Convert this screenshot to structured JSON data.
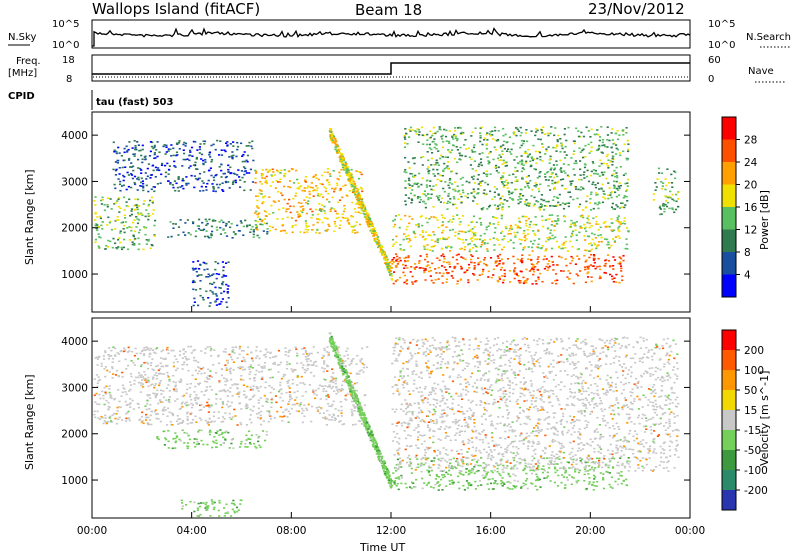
{
  "header": {
    "station": "Wallops Island (fitACF)",
    "beam": "Beam 18",
    "date": "23/Nov/2012"
  },
  "strip_panels": {
    "noise": {
      "left_label": "N.Sky",
      "right_label": "N.Search",
      "left_ticks": [
        "10^5",
        "10^0"
      ],
      "right_ticks": [
        "10^5",
        "10^0"
      ],
      "line_color": "#000000"
    },
    "freq": {
      "left_label": "Freq.",
      "left_units": "[MHz]",
      "right_label": "Nave",
      "left_ticks": [
        "18",
        "8"
      ],
      "right_ticks": [
        "60",
        "0"
      ],
      "step_hour": 12.0
    },
    "cpid": {
      "label": "CPID",
      "text": "tau (fast) 503"
    }
  },
  "chart_data": [
    {
      "type": "heatmap",
      "name": "power",
      "ylabel": "Slant Range [km]",
      "ylim": [
        180,
        4500
      ],
      "yticks": [
        "1000",
        "2000",
        "3000",
        "4000"
      ],
      "xlim_hours": [
        0,
        24
      ],
      "colorbar": {
        "label": "Power [dB]",
        "ticks": [
          "4",
          "8",
          "12",
          "16",
          "20",
          "24",
          "28"
        ],
        "colors": [
          "#0000ff",
          "#1a4fa0",
          "#2f7a4e",
          "#58c060",
          "#f0e000",
          "#ff9f00",
          "#ff5000",
          "#ff0000"
        ]
      },
      "features": [
        {
          "kind": "band",
          "h0": 0.0,
          "h1": 2.5,
          "r0": 1550,
          "r1": 2700,
          "level": 14
        },
        {
          "kind": "band",
          "h0": 0.8,
          "h1": 6.5,
          "r0": 2800,
          "r1": 3900,
          "level": 6
        },
        {
          "kind": "band",
          "h0": 3.0,
          "h1": 7.0,
          "r0": 1800,
          "r1": 2200,
          "level": 10
        },
        {
          "kind": "band",
          "h0": 4.0,
          "h1": 5.5,
          "r0": 300,
          "r1": 1300,
          "level": 6
        },
        {
          "kind": "band",
          "h0": 6.5,
          "h1": 10.8,
          "r0": 1900,
          "r1": 3300,
          "level": 20
        },
        {
          "kind": "band",
          "h0": 11.9,
          "h1": 21.3,
          "r0": 800,
          "r1": 1450,
          "level": 26
        },
        {
          "kind": "band",
          "h0": 12.0,
          "h1": 21.5,
          "r0": 1500,
          "r1": 2300,
          "level": 17
        },
        {
          "kind": "band",
          "h0": 12.5,
          "h1": 21.5,
          "r0": 2400,
          "r1": 4200,
          "level": 13
        },
        {
          "kind": "slant",
          "h0": 9.5,
          "h1": 12.0,
          "r0": 4100,
          "r1": 1000,
          "level": 18
        },
        {
          "kind": "band",
          "h0": 22.5,
          "h1": 23.5,
          "r0": 2300,
          "r1": 3300,
          "level": 14
        }
      ]
    },
    {
      "type": "heatmap",
      "name": "velocity",
      "ylabel": "Slant Range [km]",
      "ylim": [
        180,
        4500
      ],
      "yticks": [
        "1000",
        "2000",
        "3000",
        "4000"
      ],
      "xlim_hours": [
        0,
        24
      ],
      "xlabel": "Time UT",
      "xticks": [
        "00:00",
        "04:00",
        "08:00",
        "12:00",
        "16:00",
        "20:00",
        "00:00"
      ],
      "colorbar": {
        "label": "Velocity [m s^-1]",
        "ticks": [
          "200",
          "100",
          "50",
          "15",
          "-15",
          "-50",
          "-100",
          "-200"
        ],
        "colors": [
          "#2a35b0",
          "#2a8a6a",
          "#3e9a3e",
          "#74d05a",
          "#c8c8c8",
          "#f0d800",
          "#ff9800",
          "#ff5a00",
          "#ff0000"
        ]
      },
      "features": [
        {
          "kind": "band",
          "h0": 0.0,
          "h1": 11.0,
          "r0": 2200,
          "r1": 3900,
          "level": 0
        },
        {
          "kind": "band",
          "h0": 2.5,
          "h1": 7.0,
          "r0": 1700,
          "r1": 2100,
          "level": 40
        },
        {
          "kind": "band",
          "h0": 3.5,
          "h1": 6.0,
          "r0": 150,
          "r1": 600,
          "level": 40
        },
        {
          "kind": "slant",
          "h0": 9.5,
          "h1": 12.0,
          "r0": 4100,
          "r1": 900,
          "level": 40
        },
        {
          "kind": "band",
          "h0": 12.0,
          "h1": 21.5,
          "r0": 800,
          "r1": 1500,
          "level": 30
        },
        {
          "kind": "band",
          "h0": 12.0,
          "h1": 23.5,
          "r0": 1200,
          "r1": 4100,
          "level": 0
        }
      ]
    }
  ]
}
